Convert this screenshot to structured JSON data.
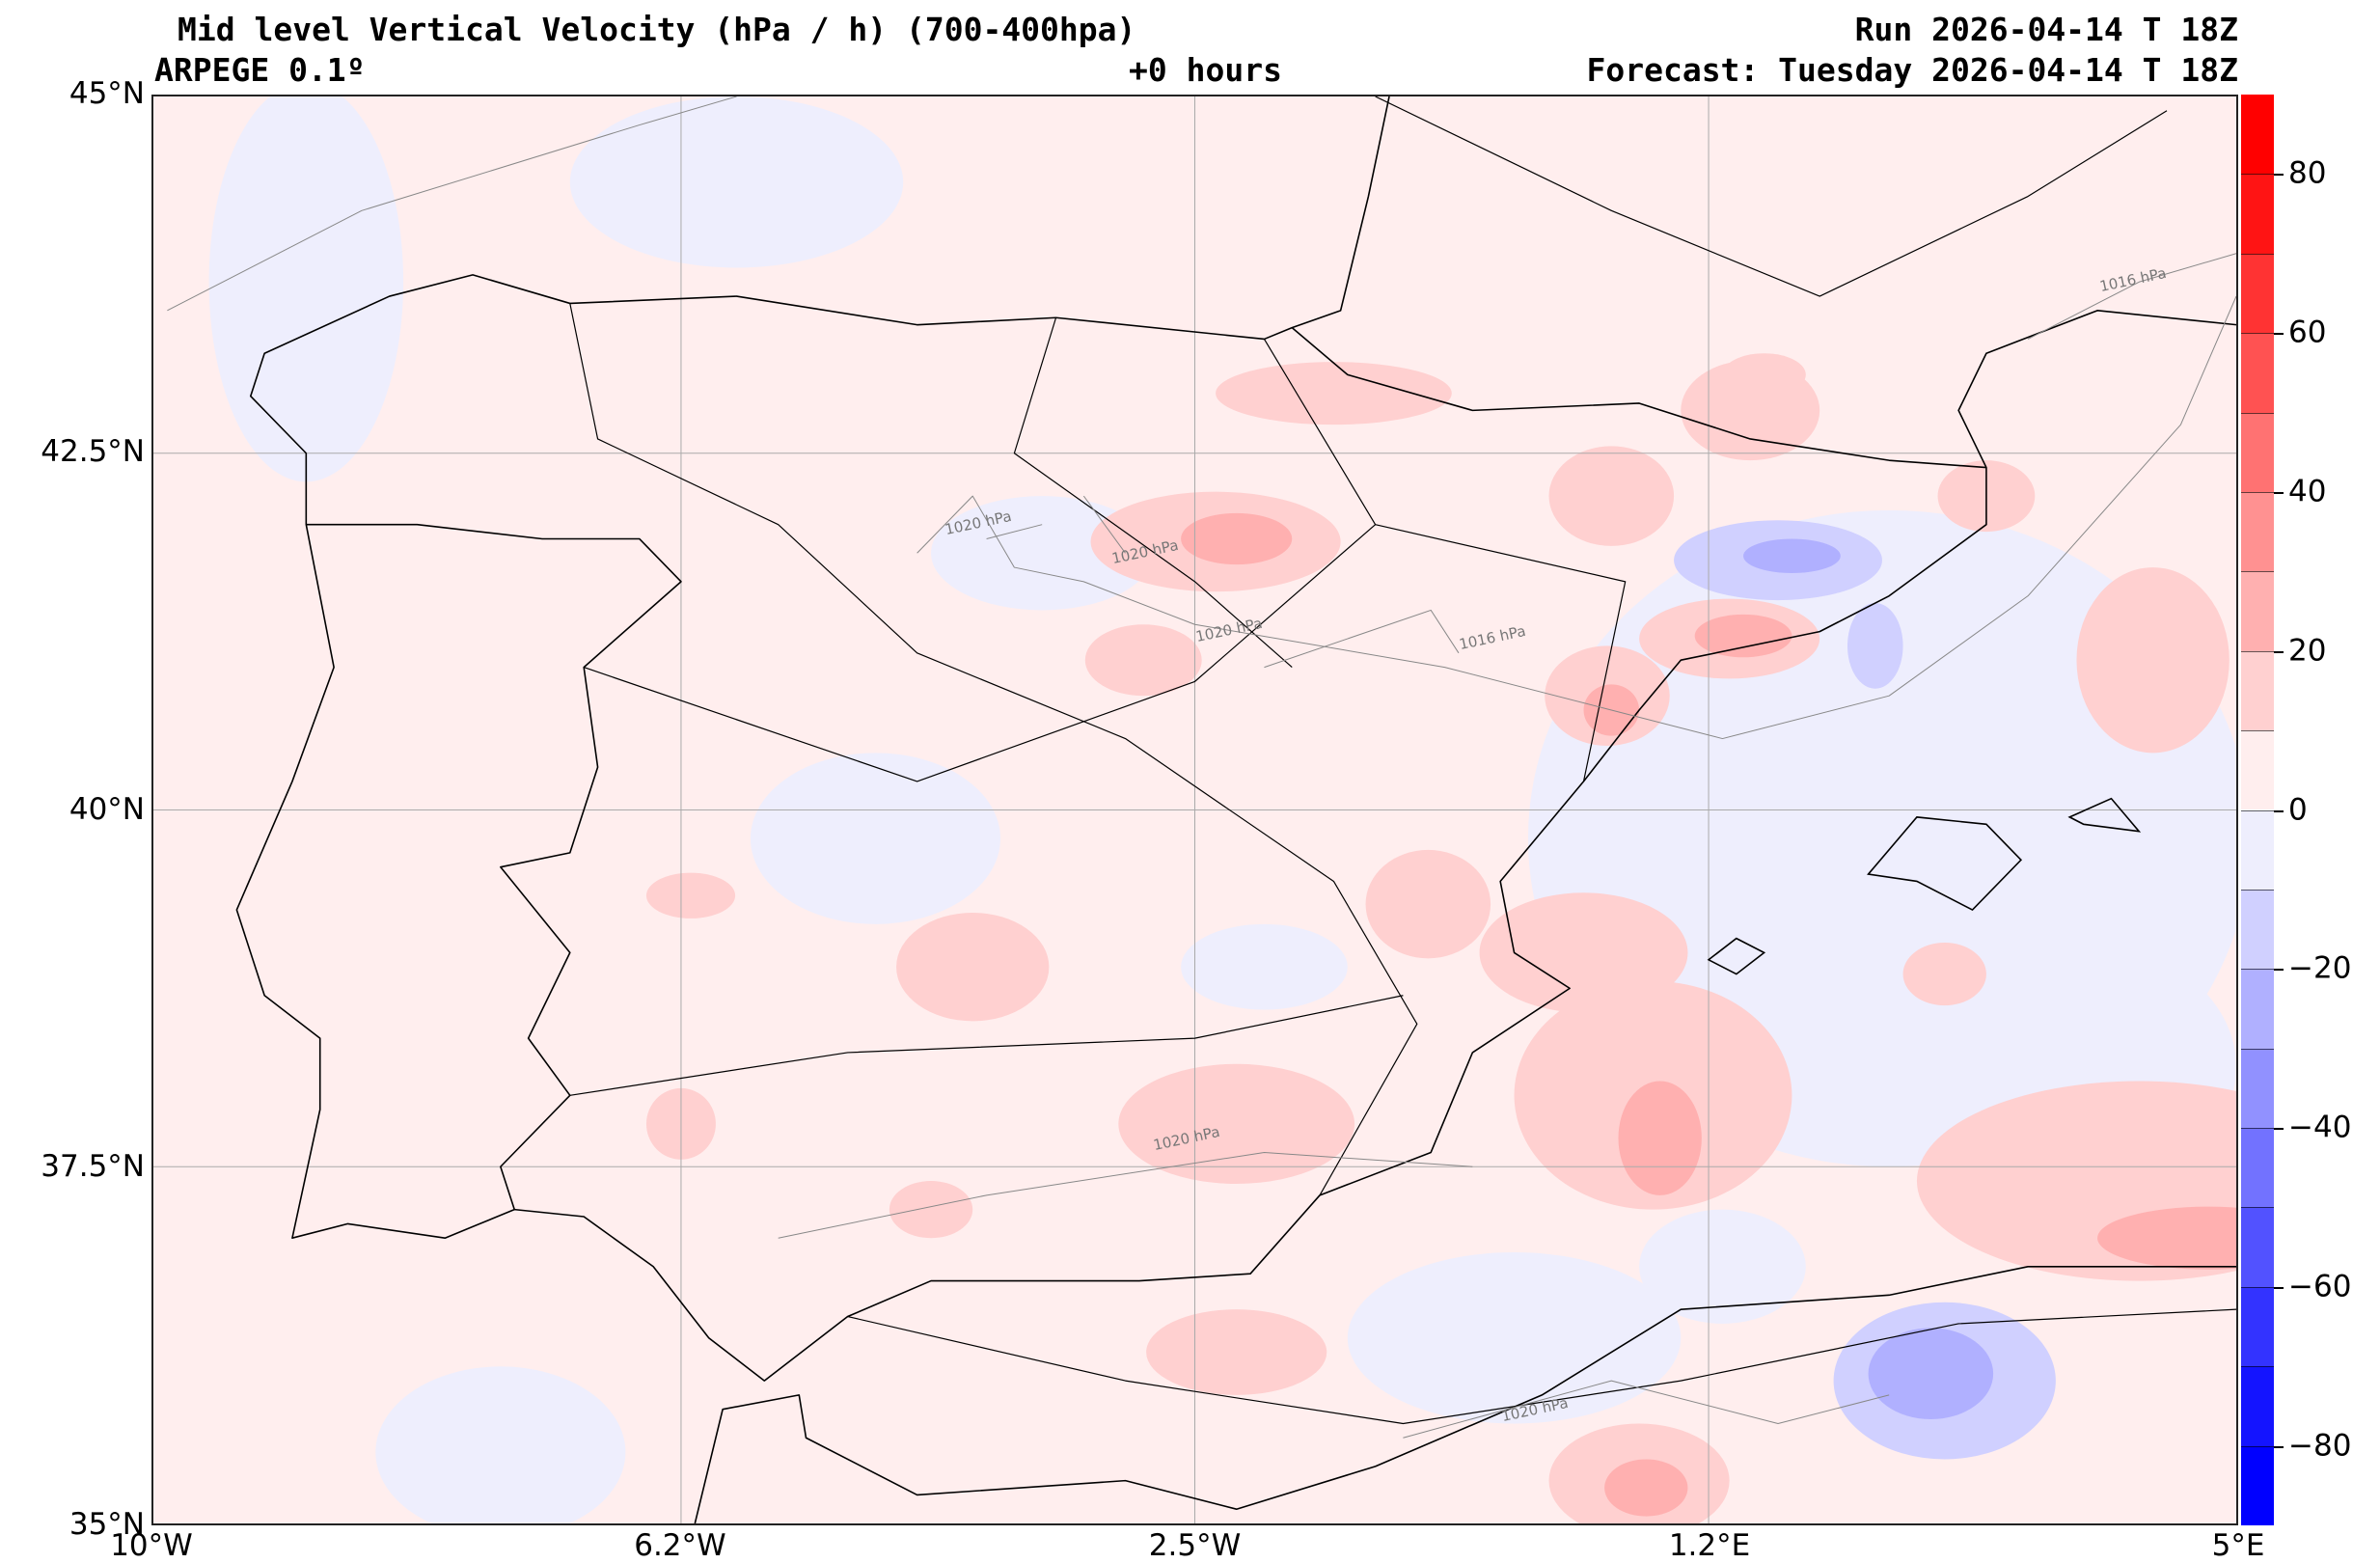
{
  "header": {
    "title": "Mid level Vertical Velocity (hPa / h)  (700-400hpa)",
    "model": "ARPEGE 0.1º",
    "lead": "+0 hours",
    "run": "Run 2026-04-14 T 18Z",
    "forecast": "Forecast: Tuesday 2026-04-14 T 18Z"
  },
  "axes": {
    "lat_labels": [
      "45°N",
      "42.5°N",
      "40°N",
      "37.5°N",
      "35°N"
    ],
    "lat_values": [
      45,
      42.5,
      40,
      37.5,
      35
    ],
    "lon_labels": [
      "10°W",
      "6.2°W",
      "2.5°W",
      "1.2°E",
      "5°E"
    ],
    "lon_values": [
      -10,
      -6.2,
      -2.5,
      1.2,
      5
    ],
    "extent": {
      "lon": [
        -10,
        5
      ],
      "lat": [
        35,
        45
      ]
    }
  },
  "contour_labels": [
    "1020 hPa",
    "1020 hPa",
    "1020 hPa",
    "1020 hPa",
    "1016 hPa",
    "1016 hPa",
    "1020 hPa"
  ],
  "colorbar": {
    "units": "hPa / h",
    "range": [
      -90,
      90
    ],
    "step": 10,
    "tick_labels": [
      "80",
      "60",
      "40",
      "20",
      "0",
      "−20",
      "−40",
      "−60",
      "−80"
    ],
    "tick_values": [
      80,
      60,
      40,
      20,
      0,
      -20,
      -40,
      -60,
      -80
    ],
    "colors_low_to_high": [
      "#0000ff",
      "#1414ff",
      "#3333ff",
      "#5252ff",
      "#7272ff",
      "#9191ff",
      "#b0b0ff",
      "#d0d0ff",
      "#eeeefd",
      "#ffeeee",
      "#ffd0d0",
      "#ffb0b0",
      "#ff9191",
      "#ff7272",
      "#ff5252",
      "#ff3333",
      "#ff1414",
      "#ff0000"
    ]
  }
}
